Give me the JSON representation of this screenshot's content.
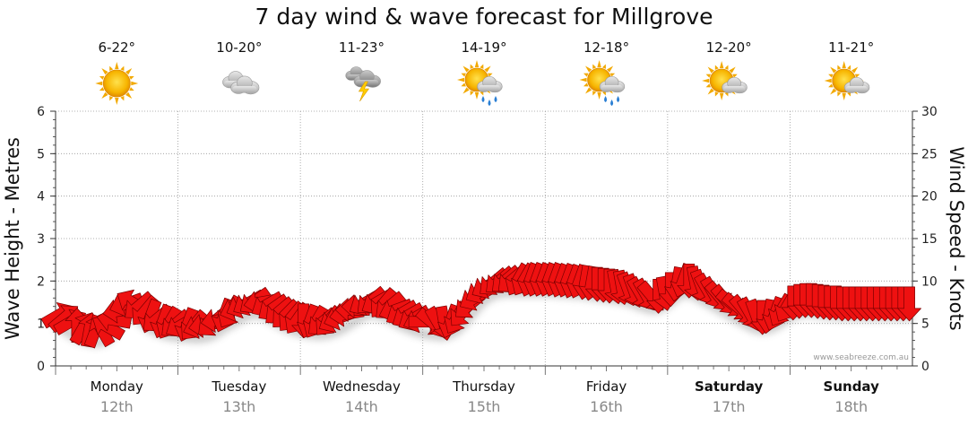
{
  "page_title": "7 day wind & wave forecast for Millgrove",
  "credit": "www.seabreeze.com.au",
  "colors": {
    "arrow_fill": "#ee1111",
    "arrow_stroke": "#7a0000",
    "grid": "#999999",
    "date_text": "#888888"
  },
  "days": [
    {
      "name": "Monday",
      "date": "12th",
      "temp": "6-22°",
      "icon": "sunny-icon",
      "bold": false
    },
    {
      "name": "Tuesday",
      "date": "13th",
      "temp": "10-20°",
      "icon": "cloudy-icon",
      "bold": false
    },
    {
      "name": "Wednesday",
      "date": "14th",
      "temp": "11-23°",
      "icon": "thunderstorm-icon",
      "bold": false
    },
    {
      "name": "Thursday",
      "date": "15th",
      "temp": "14-19°",
      "icon": "sun-cloud-showers-icon",
      "bold": false
    },
    {
      "name": "Friday",
      "date": "16th",
      "temp": "12-18°",
      "icon": "sun-cloud-showers-icon",
      "bold": false
    },
    {
      "name": "Saturday",
      "date": "17th",
      "temp": "12-20°",
      "icon": "partly-cloudy-icon",
      "bold": true
    },
    {
      "name": "Sunday",
      "date": "18th",
      "temp": "11-21°",
      "icon": "partly-cloudy-icon",
      "bold": true
    }
  ],
  "chart_data": {
    "type": "line",
    "title": "7 day wind & wave forecast for Millgrove",
    "ylabel": "Wave Height - Metres",
    "y2label": "Wind Speed - Knots",
    "ylim": [
      0,
      6
    ],
    "y2lim": [
      0,
      30
    ],
    "yticks": [
      "0",
      "1",
      "2",
      "3",
      "4",
      "5",
      "6"
    ],
    "y2ticks": [
      "0",
      "5",
      "10",
      "15",
      "20",
      "25",
      "30"
    ],
    "grid": true,
    "x_unit": "day index (0 = Monday 12th start, 7 = end of Sunday 18th)",
    "series": [
      {
        "name": "Wind Speed - Knots",
        "x": [
          0.0,
          0.05,
          0.1,
          0.15,
          0.2,
          0.25,
          0.3,
          0.35,
          0.4,
          0.45,
          0.5,
          0.55,
          0.6,
          0.65,
          0.7,
          0.75,
          0.8,
          0.85,
          0.9,
          0.95,
          1.0,
          1.05,
          1.1,
          1.15,
          1.2,
          1.25,
          1.3,
          1.35,
          1.4,
          1.45,
          1.5,
          1.55,
          1.6,
          1.65,
          1.7,
          1.75,
          1.8,
          1.85,
          1.9,
          1.95,
          2.0,
          2.05,
          2.1,
          2.15,
          2.2,
          2.25,
          2.3,
          2.35,
          2.4,
          2.45,
          2.5,
          2.55,
          2.6,
          2.65,
          2.7,
          2.75,
          2.8,
          2.85,
          2.9,
          2.95,
          3.0,
          3.05,
          3.1,
          3.15,
          3.2,
          3.25,
          3.3,
          3.35,
          3.4,
          3.45,
          3.5,
          3.55,
          3.6,
          3.65,
          3.7,
          3.75,
          3.8,
          3.85,
          3.9,
          3.95,
          4.0,
          4.05,
          4.1,
          4.15,
          4.2,
          4.25,
          4.3,
          4.35,
          4.4,
          4.45,
          4.5,
          4.55,
          4.6,
          4.65,
          4.7,
          4.75,
          4.8,
          4.85,
          4.9,
          4.95,
          5.0,
          5.05,
          5.1,
          5.15,
          5.2,
          5.25,
          5.3,
          5.35,
          5.4,
          5.45,
          5.5,
          5.55,
          5.6,
          5.65,
          5.7,
          5.75,
          5.8,
          5.85,
          5.9,
          5.95,
          6.0,
          6.05,
          6.1,
          6.15,
          6.2,
          6.25,
          6.3,
          6.35,
          6.4,
          6.45,
          6.5,
          6.55,
          6.6,
          6.65,
          6.7,
          6.75,
          6.8,
          6.85,
          6.9,
          6.95
        ],
        "values": [
          6.0,
          5.7,
          5.2,
          4.8,
          4.5,
          4.3,
          4.2,
          4.3,
          4.6,
          5.4,
          6.5,
          7.3,
          7.5,
          7.0,
          6.4,
          5.8,
          5.5,
          5.2,
          5.0,
          4.9,
          4.8,
          4.8,
          4.7,
          4.7,
          4.8,
          5.0,
          5.4,
          5.9,
          6.3,
          6.7,
          7.1,
          7.4,
          7.6,
          7.5,
          7.2,
          6.8,
          6.4,
          6.0,
          5.7,
          5.5,
          5.3,
          5.2,
          5.1,
          5.1,
          5.2,
          5.4,
          5.7,
          6.1,
          6.6,
          7.0,
          7.4,
          7.6,
          7.5,
          7.3,
          7.0,
          6.6,
          6.2,
          5.9,
          5.6,
          5.4,
          5.2,
          5.1,
          5.0,
          5.0,
          5.2,
          5.6,
          6.3,
          7.1,
          8.0,
          8.8,
          9.4,
          9.8,
          10.0,
          10.1,
          10.1,
          10.1,
          10.1,
          10.1,
          10.1,
          10.1,
          10.1,
          10.1,
          10.0,
          10.0,
          9.9,
          9.9,
          9.8,
          9.7,
          9.6,
          9.5,
          9.4,
          9.3,
          9.2,
          9.0,
          8.8,
          8.5,
          8.3,
          8.1,
          8.2,
          8.5,
          9.0,
          9.6,
          10.0,
          10.0,
          9.7,
          9.3,
          8.9,
          8.5,
          8.1,
          7.7,
          7.3,
          6.9,
          6.5,
          6.1,
          5.8,
          5.7,
          5.8,
          6.1,
          6.5,
          7.0,
          7.4,
          7.6,
          7.7,
          7.7,
          7.6,
          7.5,
          7.4,
          7.4,
          7.3,
          7.3,
          7.3,
          7.3,
          7.3,
          7.3,
          7.3,
          7.3,
          7.3,
          7.3,
          7.3,
          7.3
        ],
        "wind_to_direction_deg": [
          60,
          50,
          60,
          0,
          30,
          10,
          20,
          330,
          300,
          280,
          260,
          250,
          300,
          230,
          220,
          200,
          230,
          200,
          210,
          230,
          240,
          200,
          220,
          250,
          260,
          230,
          260,
          200,
          210,
          250,
          245,
          240,
          235,
          260,
          240,
          235,
          230,
          225,
          220,
          215,
          180,
          200,
          210,
          230,
          220,
          240,
          250,
          260,
          270,
          270,
          240,
          230,
          240,
          220,
          230,
          250,
          240,
          240,
          240,
          250,
          90,
          130,
          150,
          170,
          200,
          210,
          220,
          230,
          240,
          240,
          240,
          230,
          230,
          230,
          230,
          210,
          210,
          200,
          200,
          200,
          200,
          200,
          200,
          200,
          200,
          200,
          190,
          190,
          180,
          180,
          180,
          170,
          170,
          160,
          160,
          150,
          150,
          140,
          180,
          170,
          180,
          190,
          200,
          180,
          170,
          160,
          150,
          150,
          140,
          140,
          130,
          130,
          140,
          150,
          160,
          180,
          190,
          200,
          210,
          210,
          180,
          180,
          180,
          180,
          180,
          180,
          180,
          180,
          180,
          180,
          180,
          180,
          180,
          180,
          180,
          180,
          180,
          180,
          180,
          180
        ]
      }
    ]
  }
}
